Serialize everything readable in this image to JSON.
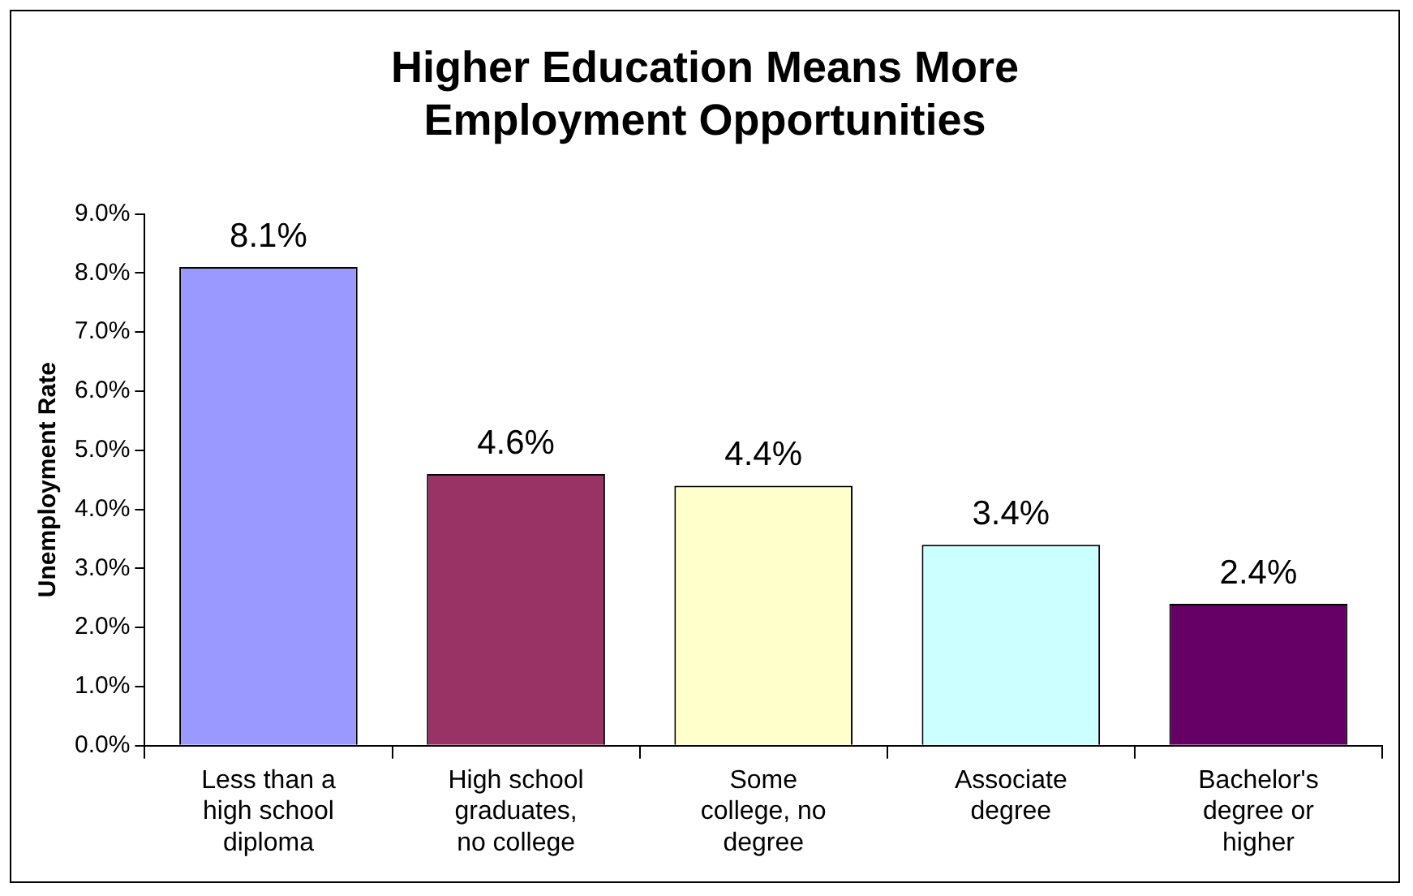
{
  "chart_data": {
    "type": "bar",
    "title": "Higher Education Means More Employment Opportunities",
    "ylabel": "Unemployment Rate",
    "categories": [
      "Less than a high school diploma",
      "High school graduates, no college",
      "Some college, no degree",
      "Associate degree",
      "Bachelor's degree or higher"
    ],
    "values": [
      8.1,
      4.6,
      4.4,
      3.4,
      2.4
    ],
    "value_labels": [
      "8.1%",
      "4.6%",
      "4.4%",
      "3.4%",
      "2.4%"
    ],
    "colors": [
      "#9999ff",
      "#993366",
      "#ffffcc",
      "#ccffff",
      "#660066"
    ],
    "ylim": [
      0,
      9
    ],
    "yticks": [
      {
        "value": 0,
        "label": "0.0%"
      },
      {
        "value": 1,
        "label": "1.0%"
      },
      {
        "value": 2,
        "label": "2.0%"
      },
      {
        "value": 3,
        "label": "3.0%"
      },
      {
        "value": 4,
        "label": "4.0%"
      },
      {
        "value": 5,
        "label": "5.0%"
      },
      {
        "value": 6,
        "label": "6.0%"
      },
      {
        "value": 7,
        "label": "7.0%"
      },
      {
        "value": 8,
        "label": "8.0%"
      },
      {
        "value": 9,
        "label": "9.0%"
      }
    ],
    "grid": false,
    "legend": false
  }
}
